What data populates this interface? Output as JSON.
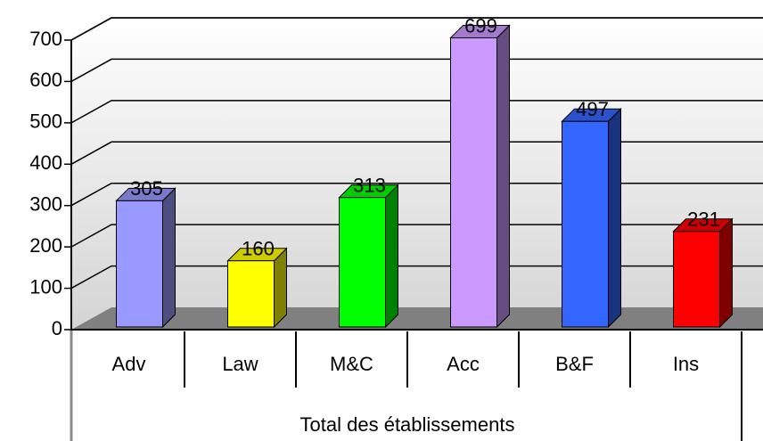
{
  "chart_data": {
    "type": "bar3d",
    "categories": [
      "Adv",
      "Law",
      "M&C",
      "Acc",
      "B&F",
      "Ins"
    ],
    "values": [
      305,
      160,
      313,
      699,
      497,
      231
    ],
    "colors": [
      "#9999ff",
      "#ffff00",
      "#00ff00",
      "#cc99ff",
      "#3366ff",
      "#ff0000"
    ],
    "x_group_label": "Total des établissements",
    "ylim": [
      0,
      700
    ],
    "yticks": [
      0,
      100,
      200,
      300,
      400,
      500,
      600,
      700
    ],
    "grid": true
  }
}
